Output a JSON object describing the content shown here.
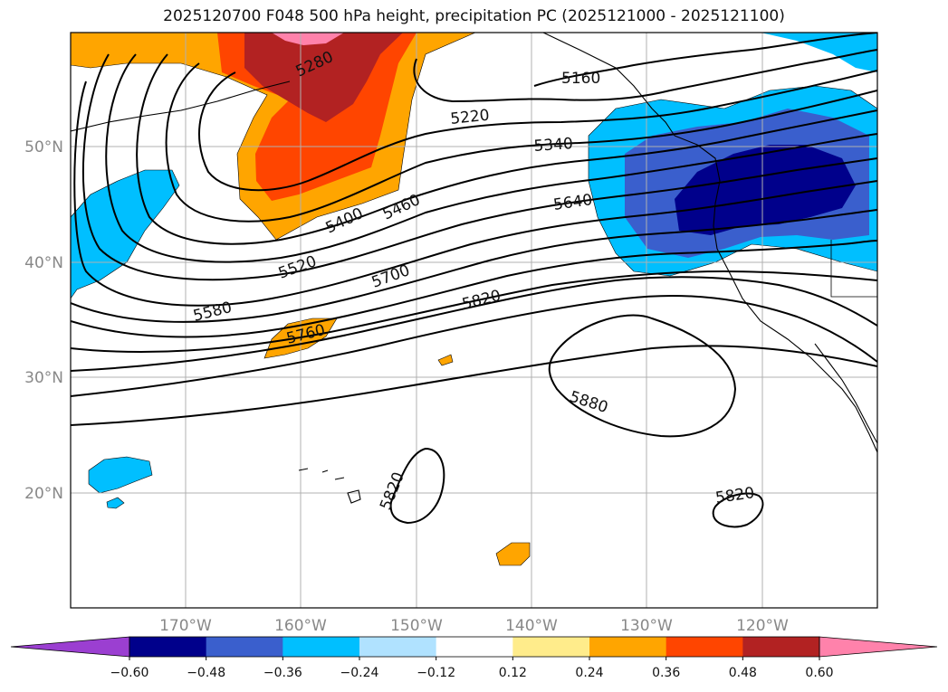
{
  "title": "2025120700 F048 500 hPa height, precipitation PC (2025121000 - 2025121100)",
  "lat_labels": [
    "50°N",
    "40°N",
    "30°N",
    "20°N"
  ],
  "lon_labels": [
    "170°W",
    "160°W",
    "150°W",
    "140°W",
    "130°W",
    "120°W"
  ],
  "contour_labels": [
    "5160",
    "5220",
    "5340",
    "5280",
    "5400",
    "5460",
    "5520",
    "5580",
    "5640",
    "5700",
    "5760",
    "5820",
    "5880",
    "5820",
    "5820"
  ],
  "colorbar": {
    "tick_labels": [
      "−0.60",
      "−0.48",
      "−0.36",
      "−0.24",
      "−0.12",
      "0.12",
      "0.24",
      "0.36",
      "0.48",
      "0.60"
    ],
    "colors": [
      "#9b3fd1",
      "#00008b",
      "#3a5fcd",
      "#00bfff",
      "#b0e2ff",
      "#ffffff",
      "#ffec8b",
      "#ffa500",
      "#ff4500",
      "#b22222",
      "#ff82ab"
    ]
  },
  "colors": {
    "contour": "#000000",
    "grid": "#b0b0b0",
    "coast": "#000000"
  }
}
